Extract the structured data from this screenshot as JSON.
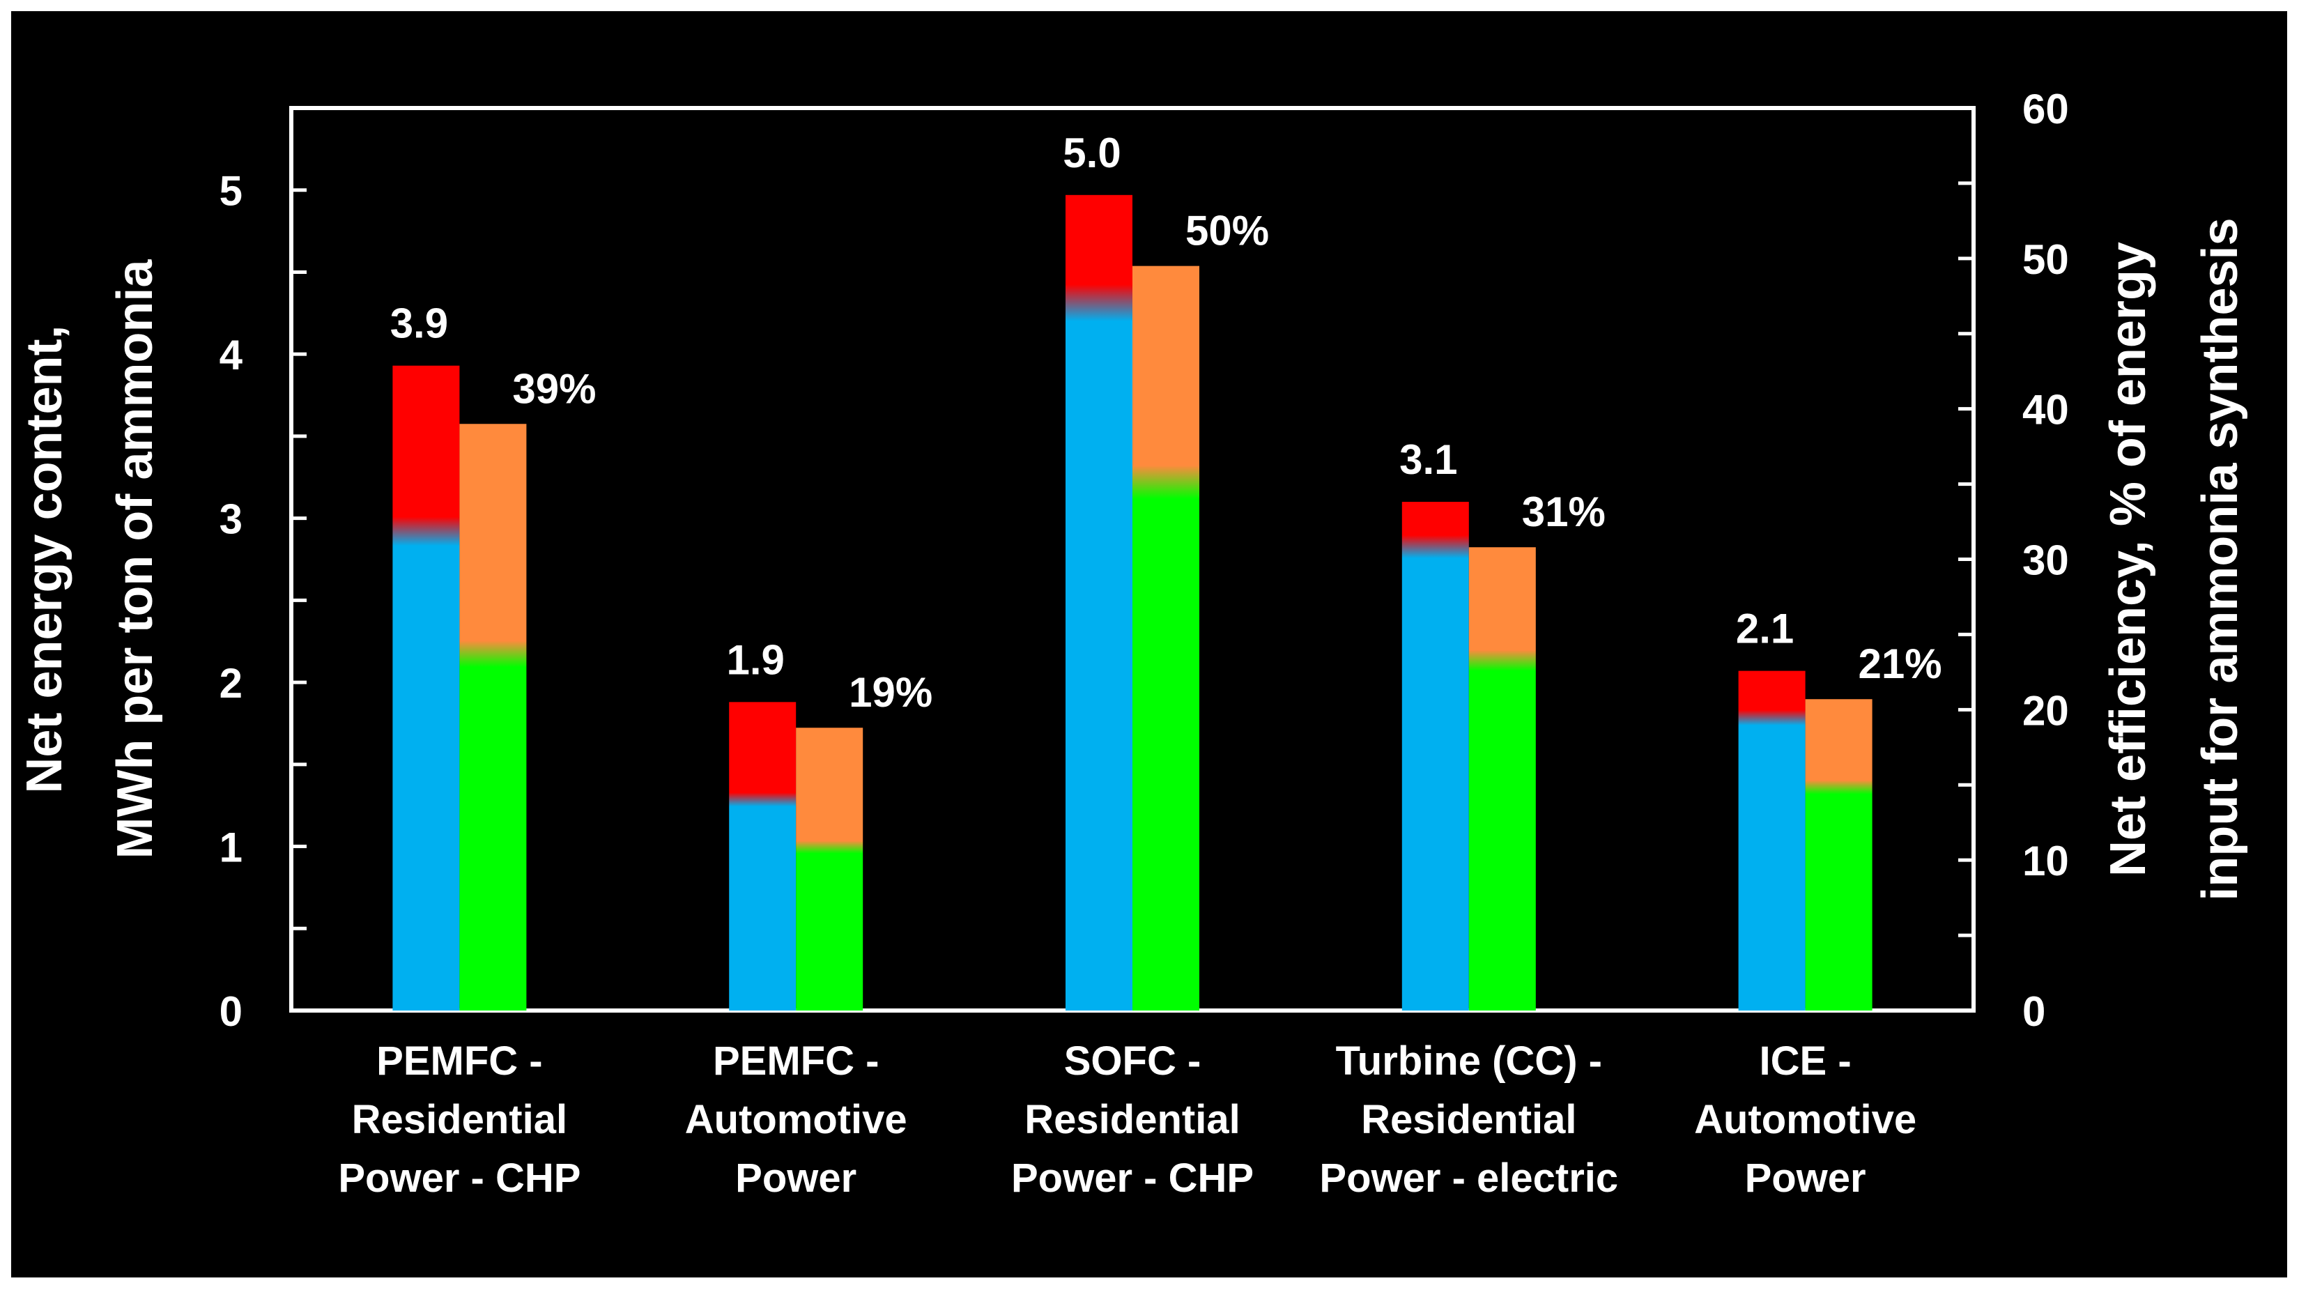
{
  "chart_data": {
    "type": "bar",
    "categories": [
      [
        "PEMFC -",
        "Residential",
        "Power - CHP"
      ],
      [
        "PEMFC -",
        "Automotive",
        "Power"
      ],
      [
        "SOFC -",
        "Residential",
        "Power - CHP"
      ],
      [
        "Turbine (CC) -",
        "Residential",
        "Power - electric"
      ],
      [
        "ICE -",
        "Automotive",
        "Power"
      ]
    ],
    "series": [
      {
        "name": "Net energy content",
        "axis": "left",
        "values": [
          3.93,
          1.88,
          4.97,
          3.1,
          2.07
        ],
        "lower_values": [
          2.95,
          1.3,
          4.35,
          2.85,
          1.8
        ],
        "lower_color": "#00b0f0",
        "upper_color": "#ff0000",
        "labels": [
          "3.9",
          "1.9",
          "5.0",
          "3.1",
          "2.1"
        ]
      },
      {
        "name": "Net efficiency",
        "axis": "right",
        "values": [
          39,
          18.8,
          49.5,
          30.8,
          20.7
        ],
        "lower_values": [
          24,
          11,
          35.5,
          23.5,
          15
        ],
        "lower_color": "#00ff00",
        "upper_color": "#ff8a3d",
        "labels": [
          "39%",
          "19%",
          "50%",
          "31%",
          "21%"
        ]
      }
    ],
    "left_axis": {
      "label_lines": [
        "Net energy content,",
        "MWh per ton of ammonia"
      ],
      "ylim": [
        0,
        5.5
      ],
      "ticks": [
        0,
        1,
        2,
        3,
        4,
        5
      ]
    },
    "right_axis": {
      "label_lines": [
        "Net efficiency, % of energy",
        "input for ammonia synthesis"
      ],
      "ylim": [
        0,
        60
      ],
      "ticks": [
        0,
        10,
        20,
        30,
        40,
        50,
        60
      ]
    },
    "grid": false,
    "legend": "none"
  },
  "colors": {
    "background": "#000000",
    "axis": "#ffffff",
    "text": "#ffffff"
  }
}
